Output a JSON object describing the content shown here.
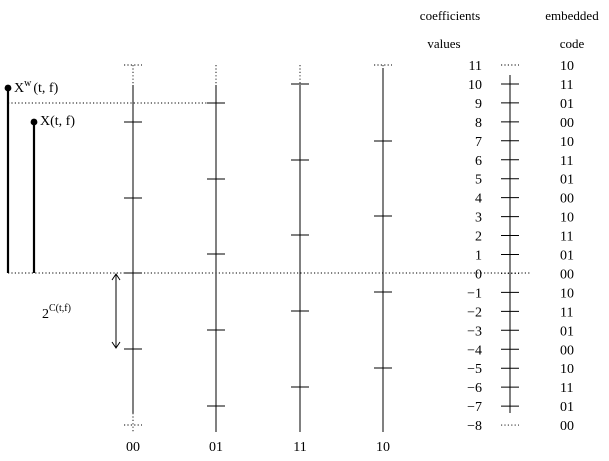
{
  "header": {
    "coefficients_line1": "coefficients",
    "coefficients_line2": "values",
    "embedded_line1": "embedded",
    "embedded_line2": "code"
  },
  "axis_labels": [
    "00",
    "01",
    "11",
    "10"
  ],
  "coefficients": [
    {
      "value": "11",
      "code": "10",
      "dotted": true
    },
    {
      "value": "10",
      "code": "11"
    },
    {
      "value": "9",
      "code": "01"
    },
    {
      "value": "8",
      "code": "00"
    },
    {
      "value": "7",
      "code": "10"
    },
    {
      "value": "6",
      "code": "11"
    },
    {
      "value": "5",
      "code": "01"
    },
    {
      "value": "4",
      "code": "00"
    },
    {
      "value": "3",
      "code": "10"
    },
    {
      "value": "2",
      "code": "11"
    },
    {
      "value": "1",
      "code": "01"
    },
    {
      "value": "0",
      "code": "00",
      "dotted": true
    },
    {
      "value": "−1",
      "code": "10"
    },
    {
      "value": "−2",
      "code": "11"
    },
    {
      "value": "−3",
      "code": "01"
    },
    {
      "value": "−4",
      "code": "00"
    },
    {
      "value": "−5",
      "code": "10"
    },
    {
      "value": "−6",
      "code": "11"
    },
    {
      "value": "−7",
      "code": "01"
    },
    {
      "value": "−8",
      "code": "00",
      "dotted": true
    }
  ],
  "annotations": {
    "xw_main": "X",
    "xw_sup": "w",
    "xw_args": "(t, f)",
    "x_label": "X(t, f)",
    "step_base": "2",
    "step_exp": "C(t,f)"
  }
}
